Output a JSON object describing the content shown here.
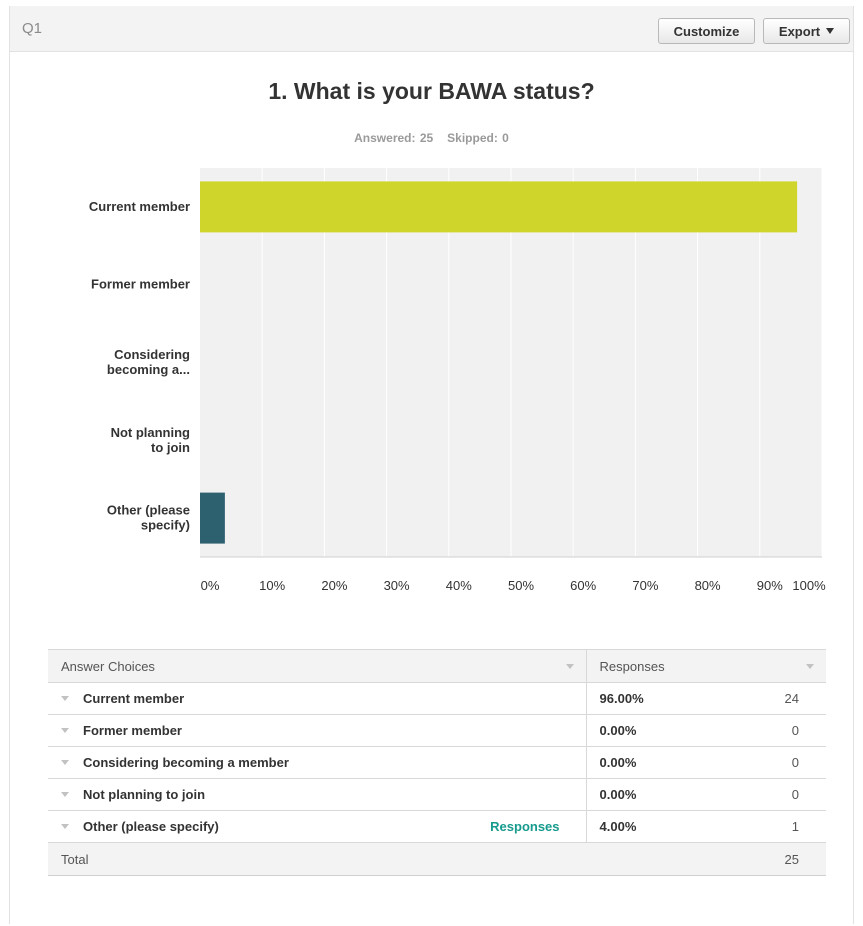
{
  "header": {
    "question_number": "Q1",
    "customize_label": "Customize",
    "export_label": "Export"
  },
  "question": {
    "title": "1. What is your BAWA status?",
    "answered": "Answered: 25",
    "skipped": "Skipped: 0"
  },
  "chart_data": {
    "type": "bar",
    "orientation": "horizontal",
    "categories": [
      [
        "Current member"
      ],
      [
        "Former member"
      ],
      [
        "Considering",
        "becoming a..."
      ],
      [
        "Not planning",
        "to join"
      ],
      [
        "Other (please",
        "specify)"
      ]
    ],
    "values": [
      96,
      0,
      0,
      0,
      4
    ],
    "bar_colors": [
      "#cfd52a",
      "#2e6170",
      "#2e6170",
      "#2e6170",
      "#2e6170"
    ],
    "xlim": [
      0,
      100
    ],
    "xticks": [
      "0%",
      "10%",
      "20%",
      "30%",
      "40%",
      "50%",
      "60%",
      "70%",
      "80%",
      "90%",
      "100%"
    ],
    "grid": true,
    "plot_background": "#f1f1f1"
  },
  "table": {
    "header": {
      "choices": "Answer Choices",
      "responses": "Responses"
    },
    "rows": [
      {
        "choice": "Current member",
        "percent": "96.00%",
        "count": "24"
      },
      {
        "choice": "Former member",
        "percent": "0.00%",
        "count": "0"
      },
      {
        "choice": "Considering becoming a member",
        "percent": "0.00%",
        "count": "0"
      },
      {
        "choice": "Not planning to join",
        "percent": "0.00%",
        "count": "0"
      },
      {
        "choice": "Other (please specify)",
        "percent": "4.00%",
        "count": "1",
        "link": "Responses"
      }
    ],
    "total_label": "Total",
    "total_count": "25"
  },
  "colors": {
    "link": "#179b8e",
    "accent_bar": "#cfd52a",
    "secondary_bar": "#2e6170"
  }
}
